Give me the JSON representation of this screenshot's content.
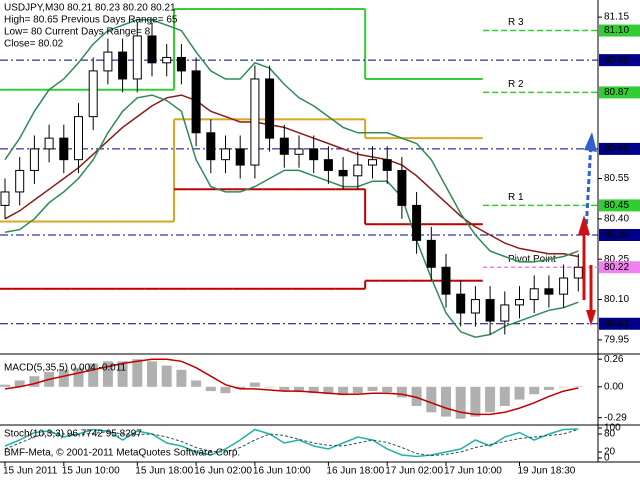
{
  "chart_data": [
    {
      "type": "candlestick",
      "info": [
        "USDJPY,M30  80.21 80.23 80.20 80.21",
        "High= 80.65   Previous Days Range= 65",
        "Low= 80   Current Days Range= 8",
        "Close= 80.02"
      ],
      "categories": [
        "15 Jun 2011",
        null,
        null,
        null,
        "15 Jun 10:00",
        null,
        null,
        null,
        null,
        "15 Jun 18:00",
        null,
        null,
        null,
        "16 Jun 02:00",
        null,
        null,
        null,
        "16 Jun 10:00",
        null,
        null,
        null,
        null,
        "16 Jun 18:00",
        null,
        null,
        null,
        "17 Jun 02:00",
        null,
        null,
        null,
        "17 Jun 10:00",
        null,
        null,
        null,
        null,
        "19 Jun 18:30",
        null,
        null,
        null,
        null
      ],
      "open": [
        80.45,
        80.5,
        80.58,
        80.66,
        80.7,
        80.62,
        80.78,
        80.95,
        81.02,
        80.92,
        81.08,
        80.98,
        81.0,
        80.95,
        80.72,
        80.62,
        80.66,
        80.6,
        80.92,
        80.7,
        80.64,
        80.66,
        80.62,
        80.58,
        80.56,
        80.6,
        80.62,
        80.58,
        80.45,
        80.32,
        80.22,
        80.12,
        80.05,
        80.1,
        80.02,
        80.08,
        80.1,
        80.14,
        80.12,
        80.18
      ],
      "high": [
        80.55,
        80.63,
        80.71,
        80.75,
        80.75,
        80.83,
        81.0,
        81.07,
        81.07,
        81.13,
        81.13,
        81.05,
        81.05,
        81.0,
        80.77,
        80.71,
        80.71,
        80.97,
        80.97,
        80.75,
        80.71,
        80.71,
        80.67,
        80.63,
        80.65,
        80.67,
        80.67,
        80.63,
        80.5,
        80.37,
        80.27,
        80.17,
        80.15,
        80.15,
        80.13,
        80.15,
        80.19,
        80.19,
        80.23,
        80.27
      ],
      "low": [
        80.4,
        80.45,
        80.53,
        80.61,
        80.57,
        80.57,
        80.73,
        80.9,
        80.87,
        80.87,
        80.93,
        80.93,
        80.9,
        80.67,
        80.57,
        80.57,
        80.55,
        80.55,
        80.65,
        80.59,
        80.59,
        80.57,
        80.53,
        80.51,
        80.51,
        80.55,
        80.53,
        80.4,
        80.27,
        80.17,
        80.07,
        80.0,
        80.0,
        79.97,
        79.97,
        80.03,
        80.05,
        80.07,
        80.07,
        80.13
      ],
      "close": [
        80.5,
        80.58,
        80.66,
        80.7,
        80.62,
        80.78,
        80.95,
        81.02,
        80.92,
        81.08,
        80.98,
        81.0,
        80.95,
        80.72,
        80.62,
        80.66,
        80.6,
        80.92,
        80.7,
        80.64,
        80.66,
        80.62,
        80.58,
        80.56,
        80.6,
        80.62,
        80.58,
        80.45,
        80.32,
        80.22,
        80.12,
        80.05,
        80.1,
        80.02,
        80.08,
        80.1,
        80.14,
        80.12,
        80.18,
        80.22
      ],
      "up_color": "#ffffff",
      "down_color": "#000000",
      "lines": [
        {
          "color": "#8b1a1a",
          "values": [
            80.4,
            80.43,
            80.47,
            80.51,
            80.55,
            80.59,
            80.64,
            80.69,
            80.74,
            80.78,
            80.82,
            80.85,
            80.86,
            80.84,
            80.8,
            80.78,
            80.76,
            80.76,
            80.75,
            80.74,
            80.72,
            80.7,
            80.68,
            80.66,
            80.64,
            80.63,
            80.62,
            80.6,
            80.56,
            80.51,
            80.46,
            80.41,
            80.37,
            80.34,
            80.31,
            80.29,
            80.28,
            80.27,
            80.27,
            80.26
          ]
        },
        {
          "color": "#2e8b57",
          "values": [
            80.62,
            80.7,
            80.8,
            80.88,
            80.92,
            80.98,
            81.05,
            81.1,
            81.12,
            81.14,
            81.14,
            81.12,
            81.1,
            81.02,
            80.95,
            80.92,
            80.92,
            80.98,
            80.96,
            80.9,
            80.85,
            80.82,
            80.78,
            80.74,
            80.72,
            80.72,
            80.72,
            80.7,
            80.68,
            80.62,
            80.52,
            80.42,
            80.34,
            80.28,
            80.26,
            80.24,
            80.24,
            80.25,
            80.26,
            80.28
          ]
        },
        {
          "color": "#2e8b57",
          "values": [
            80.35,
            80.36,
            80.4,
            80.46,
            80.5,
            80.55,
            80.62,
            80.72,
            80.8,
            80.85,
            80.86,
            80.84,
            80.8,
            80.62,
            80.52,
            80.5,
            80.5,
            80.52,
            80.55,
            80.58,
            80.58,
            80.56,
            80.54,
            80.52,
            80.52,
            80.54,
            80.54,
            80.48,
            80.32,
            80.18,
            80.05,
            79.98,
            79.96,
            79.97,
            80.0,
            80.02,
            80.04,
            80.06,
            80.07,
            80.09
          ]
        }
      ],
      "steps": [
        {
          "color": "#32cd32",
          "values": [
            80.88,
            80.88,
            80.88,
            80.88,
            80.88,
            80.88,
            80.88,
            80.88,
            80.88,
            80.88,
            80.88,
            80.88,
            81.18,
            81.18,
            81.18,
            81.18,
            81.18,
            81.18,
            81.18,
            81.18,
            81.18,
            81.18,
            81.18,
            81.18,
            81.18,
            80.92,
            80.92,
            80.92,
            80.92,
            80.92,
            80.92,
            80.92,
            80.92,
            null,
            null,
            null,
            null,
            null,
            null,
            null
          ]
        },
        {
          "color": "#daa520",
          "values": [
            80.39,
            80.39,
            80.39,
            80.39,
            80.39,
            80.39,
            80.39,
            80.39,
            80.39,
            80.39,
            80.39,
            80.39,
            80.77,
            80.77,
            80.77,
            80.77,
            80.77,
            80.77,
            80.77,
            80.77,
            80.77,
            80.77,
            80.77,
            80.77,
            80.77,
            80.7,
            80.7,
            80.7,
            80.7,
            80.7,
            80.7,
            80.7,
            80.7,
            null,
            null,
            null,
            null,
            null,
            null,
            null
          ]
        },
        {
          "color": "#c00000",
          "values": [
            null,
            null,
            null,
            null,
            null,
            null,
            null,
            null,
            null,
            null,
            null,
            null,
            80.51,
            80.51,
            80.51,
            80.51,
            80.51,
            80.51,
            80.51,
            80.51,
            80.51,
            80.51,
            80.51,
            80.51,
            80.51,
            80.38,
            80.38,
            80.38,
            80.38,
            80.38,
            80.38,
            80.38,
            80.38,
            null,
            null,
            null,
            null,
            null,
            null,
            null
          ]
        },
        {
          "color": "#c00000",
          "values": [
            80.14,
            80.14,
            80.14,
            80.14,
            80.14,
            80.14,
            80.14,
            80.14,
            80.14,
            80.14,
            80.14,
            80.14,
            80.14,
            80.14,
            80.14,
            80.14,
            80.14,
            80.14,
            80.14,
            80.14,
            80.14,
            80.14,
            80.14,
            80.14,
            80.14,
            80.17,
            80.17,
            80.17,
            80.17,
            80.17,
            80.17,
            80.17,
            80.17,
            null,
            null,
            null,
            null,
            null,
            null,
            null
          ]
        }
      ],
      "levels": [
        {
          "name": "R 3",
          "value": 81.1,
          "label": "81.10",
          "color": "#32cd32"
        },
        {
          "value": 80.99,
          "color": "#00008b"
        },
        {
          "name": "R 2",
          "value": 80.87,
          "label": "80.87",
          "color": "#32cd32"
        },
        {
          "value": 80.66,
          "color": "#00008b"
        },
        {
          "name": "R 1",
          "value": 80.45,
          "color": "#32cd32"
        },
        {
          "value": 80.34,
          "color": "#00008b"
        },
        {
          "name": "Pivot Point",
          "value": 80.22,
          "color": "#ee82ee"
        },
        {
          "value": 80.01,
          "color": "#00008b"
        }
      ],
      "ylim": [
        79.905,
        81.195
      ],
      "yticks": [
        81.15,
        80.55,
        {
          "value": 80.4,
          "label": "80.40"
        },
        80.25,
        {
          "value": 80.1,
          "label": "80.10"
        },
        79.95
      ]
    },
    {
      "type": "macd",
      "title": "MACD(5,35,5) 0.004 -0.011",
      "histogram": [
        0.02,
        0.06,
        0.1,
        0.14,
        0.16,
        0.18,
        0.22,
        0.24,
        0.24,
        0.26,
        0.24,
        0.2,
        0.16,
        0.06,
        -0.04,
        -0.06,
        -0.02,
        0.04,
        0.0,
        -0.04,
        -0.05,
        -0.06,
        -0.07,
        -0.08,
        -0.06,
        -0.04,
        -0.05,
        -0.1,
        -0.18,
        -0.24,
        -0.28,
        -0.3,
        -0.28,
        -0.24,
        -0.18,
        -0.12,
        -0.07,
        -0.03,
        0.0,
        0.004
      ],
      "signal": [
        -0.02,
        0.0,
        0.03,
        0.07,
        0.1,
        0.13,
        0.16,
        0.19,
        0.22,
        0.24,
        0.26,
        0.26,
        0.24,
        0.18,
        0.1,
        0.02,
        -0.02,
        -0.02,
        -0.03,
        -0.04,
        -0.04,
        -0.05,
        -0.06,
        -0.07,
        -0.07,
        -0.06,
        -0.06,
        -0.07,
        -0.1,
        -0.15,
        -0.2,
        -0.24,
        -0.26,
        -0.26,
        -0.24,
        -0.2,
        -0.15,
        -0.09,
        -0.04,
        -0.011
      ],
      "histogram_color": "#b0b0b0",
      "signal_color": "#c00000",
      "ylim": [
        -0.35,
        0.29
      ],
      "yticks": [
        0.26,
        {
          "value": 0,
          "label": "0.00"
        },
        -0.29
      ]
    },
    {
      "type": "stochastic",
      "title": "Stoch(10,3,3) 96.7742 95.8297",
      "annotation": "BMF-Meta, © 2001-2011 MetaQuotes Software Corp.",
      "main": [
        40,
        60,
        85,
        90,
        70,
        80,
        95,
        90,
        60,
        90,
        80,
        50,
        40,
        20,
        10,
        30,
        60,
        95,
        80,
        50,
        60,
        40,
        30,
        50,
        70,
        60,
        30,
        10,
        5,
        10,
        20,
        30,
        60,
        40,
        70,
        85,
        60,
        80,
        95,
        96.7742
      ],
      "signal": [
        30,
        50,
        70,
        85,
        80,
        78,
        82,
        88,
        80,
        78,
        80,
        70,
        55,
        35,
        22,
        20,
        35,
        60,
        80,
        75,
        62,
        50,
        42,
        40,
        50,
        60,
        52,
        35,
        15,
        8,
        12,
        20,
        35,
        45,
        55,
        65,
        70,
        75,
        80,
        95.8297
      ],
      "main_color": "#20b2aa",
      "signal_color": "#2f4f4f",
      "ylim": [
        0,
        100
      ],
      "yticks": [
        100,
        80,
        20,
        0
      ]
    }
  ]
}
